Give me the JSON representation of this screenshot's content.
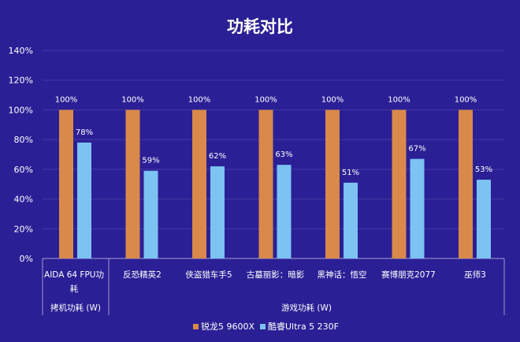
{
  "chart_data": {
    "type": "bar",
    "title": "功耗对比",
    "categories": [
      "AIDA 64 FPU功耗",
      "反恐精英2",
      "侠盗猎车手5",
      "古墓丽影：暗影",
      "黑神话：悟空",
      "赛博朋克2077",
      "巫师3"
    ],
    "category_groups": [
      {
        "label": "拷机功耗 (W)",
        "categories": 1
      },
      {
        "label": "游戏功耗 (W)",
        "categories": 6
      }
    ],
    "series": [
      {
        "name": "锐龙5 9600X",
        "color": "#d9894a",
        "values": [
          100,
          100,
          100,
          100,
          100,
          100,
          100
        ]
      },
      {
        "name": "酷睿Ultra 5 230F",
        "color": "#7cc2f2",
        "values": [
          78,
          59,
          62,
          63,
          51,
          67,
          53
        ]
      }
    ],
    "ylim": [
      0,
      140
    ],
    "yticks": [
      "0%",
      "20%",
      "40%",
      "60%",
      "80%",
      "100%",
      "120%",
      "140%"
    ],
    "ytick_values": [
      0,
      20,
      40,
      60,
      80,
      100,
      120,
      140
    ],
    "value_suffix": "%",
    "grid": true,
    "legend": "bottom",
    "background": "#2b1f96"
  }
}
